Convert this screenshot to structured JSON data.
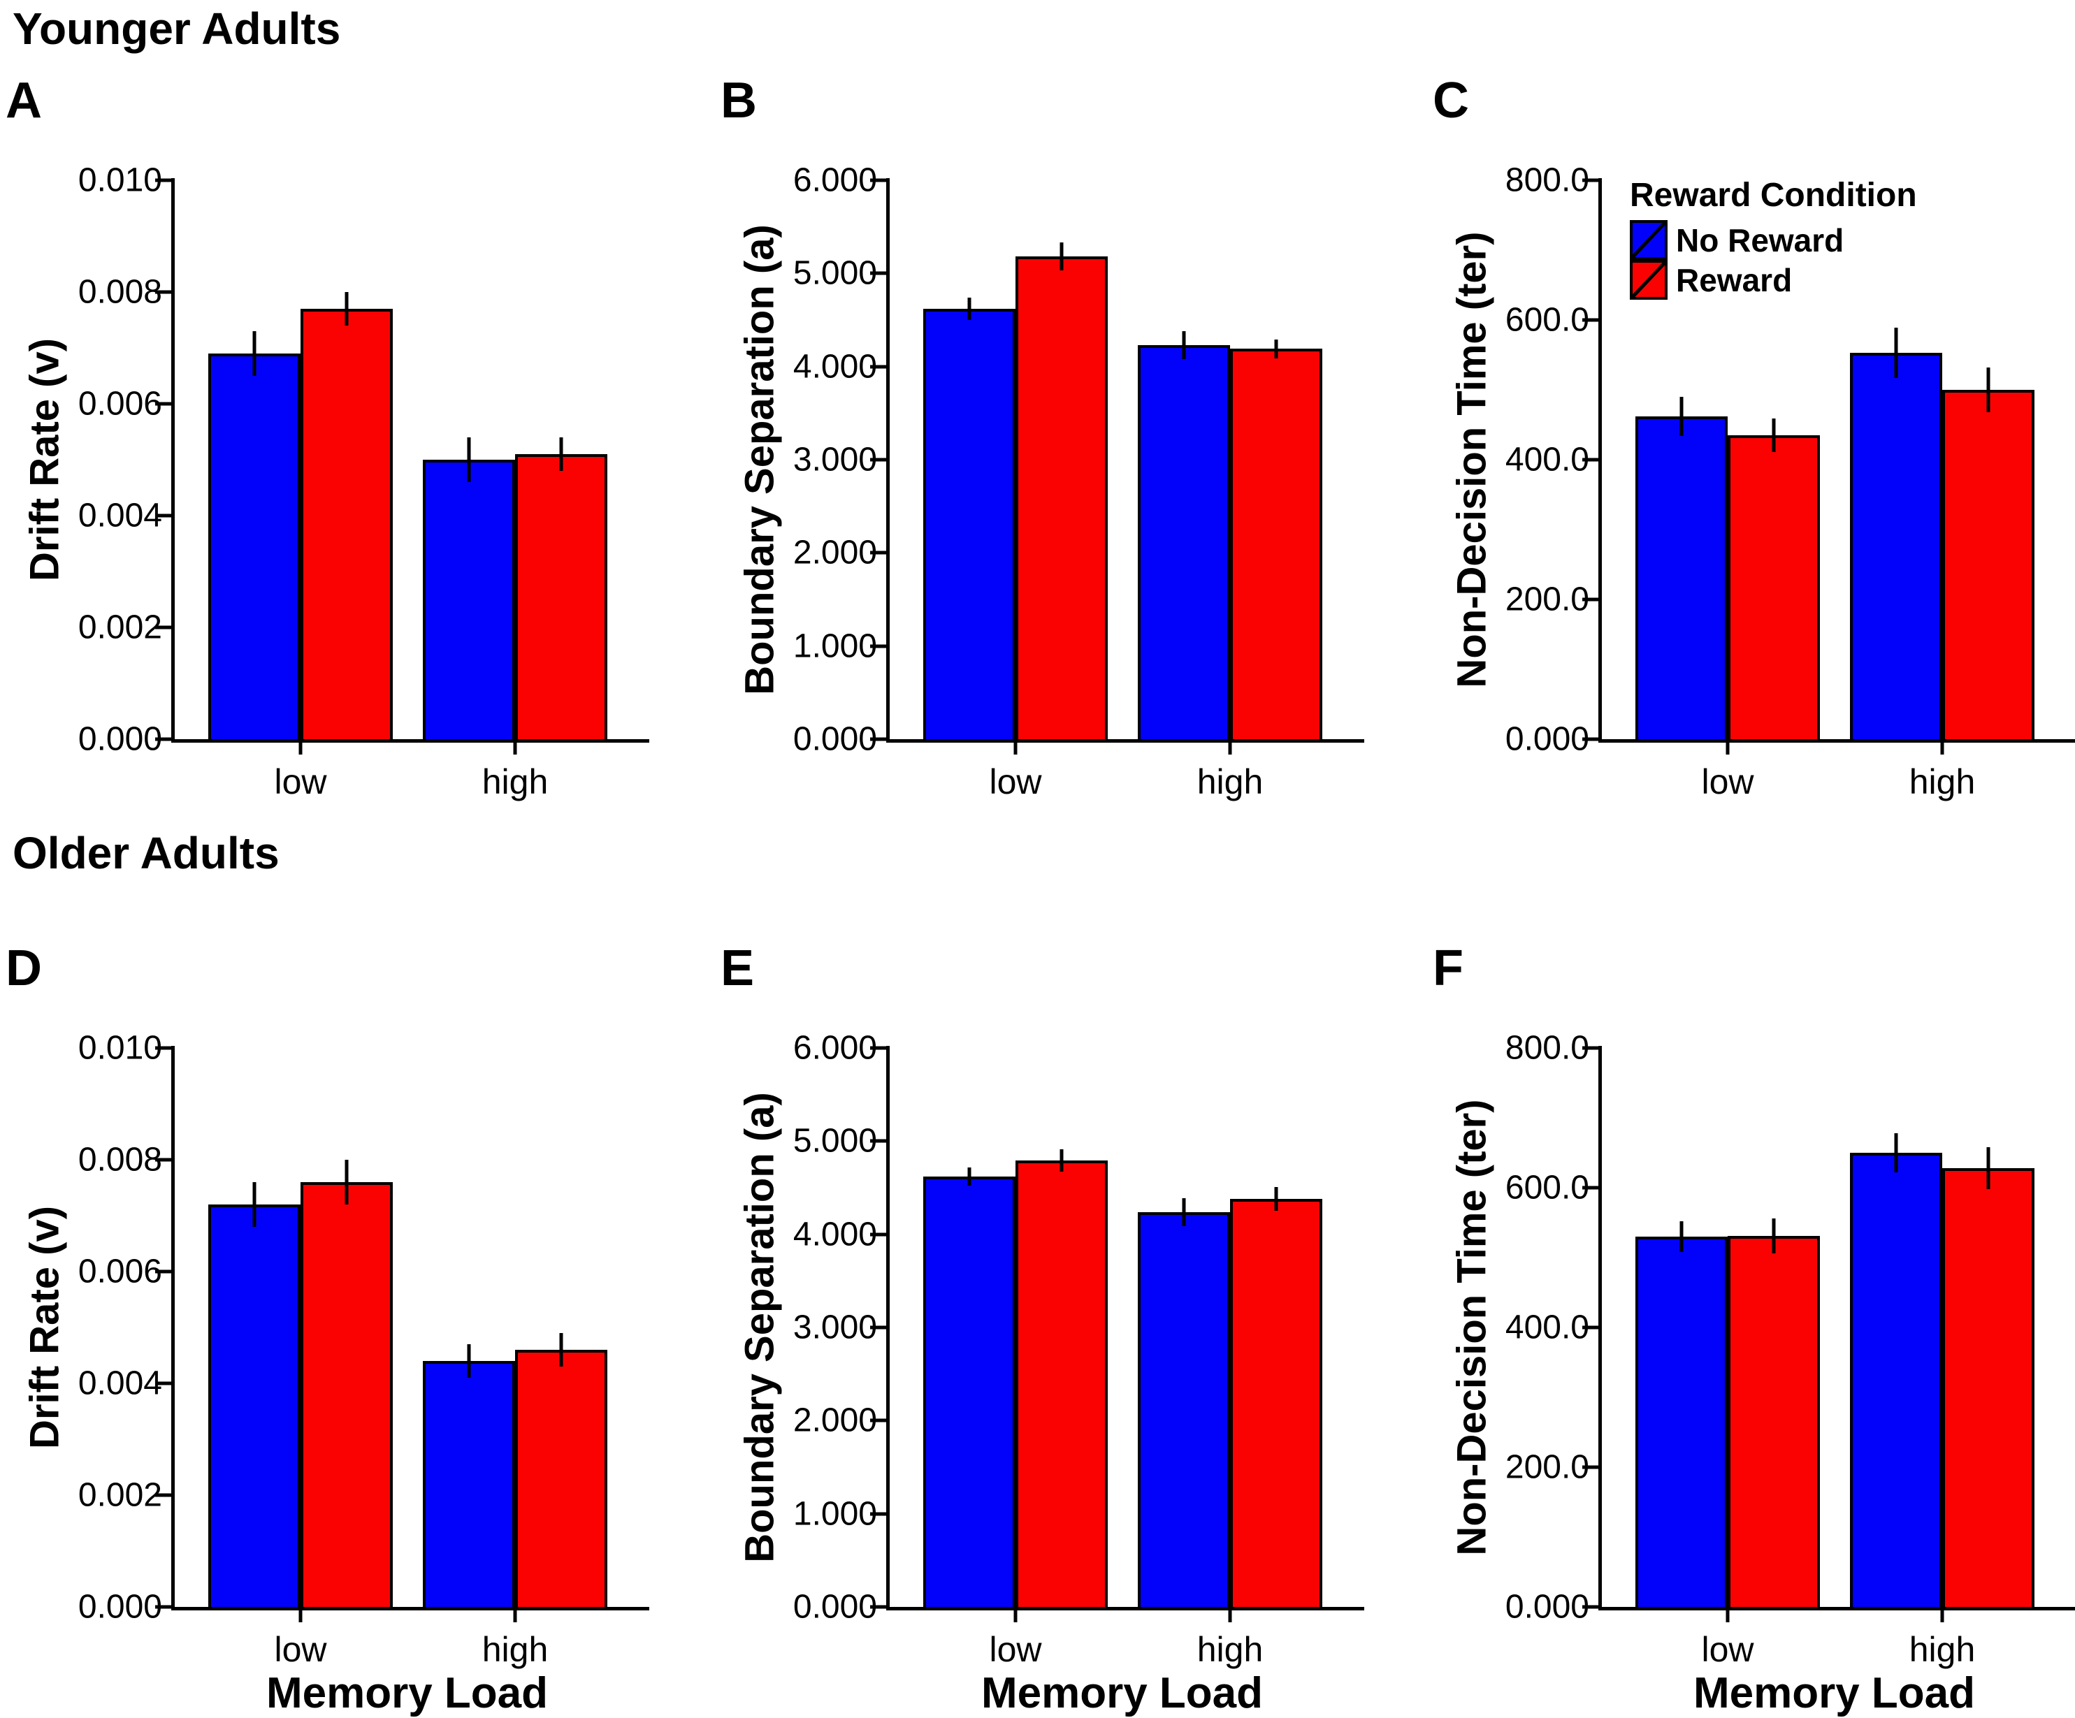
{
  "figure": {
    "background": "#ffffff",
    "row_titles": [
      "Younger Adults",
      "Older Adults"
    ]
  },
  "rows": [
    {
      "title": "Younger Adults"
    },
    {
      "title": "Older Adults"
    }
  ],
  "categories": [
    "low",
    "high"
  ],
  "x_axis_title": "Memory Load",
  "legend": {
    "title": "Reward Condition",
    "items": [
      {
        "label": "No Reward",
        "color_key": "no_reward"
      },
      {
        "label": "Reward",
        "color_key": "reward"
      }
    ]
  },
  "colors": {
    "no_reward": "#0202fa",
    "reward": "#fa0202",
    "axis": "#000000"
  },
  "chart_data": [
    {
      "type": "bar",
      "panel": "A",
      "group": "Younger Adults",
      "ylabel": "Drift Rate (v)",
      "ylim": [
        0,
        0.01
      ],
      "yticks": [
        "0.010",
        "0.008",
        "0.006",
        "0.004",
        "0.002",
        "0.000"
      ],
      "categories": [
        "low",
        "high"
      ],
      "show_legend": false,
      "series": [
        {
          "name": "No Reward",
          "color_key": "no_reward",
          "values": [
            0.0069,
            0.005
          ],
          "errors": [
            0.0004,
            0.0004
          ]
        },
        {
          "name": "Reward",
          "color_key": "reward",
          "values": [
            0.0077,
            0.0051
          ],
          "errors": [
            0.0003,
            0.0003
          ]
        }
      ]
    },
    {
      "type": "bar",
      "panel": "B",
      "group": "Younger Adults",
      "ylabel": "Boundary Separation (a)",
      "ylim": [
        0,
        6
      ],
      "yticks": [
        "6.000",
        "5.000",
        "4.000",
        "3.000",
        "2.000",
        "1.000",
        "0.000"
      ],
      "categories": [
        "low",
        "high"
      ],
      "show_legend": false,
      "series": [
        {
          "name": "No Reward",
          "color_key": "no_reward",
          "values": [
            4.62,
            4.23
          ],
          "errors": [
            0.12,
            0.15
          ]
        },
        {
          "name": "Reward",
          "color_key": "reward",
          "values": [
            5.18,
            4.19
          ],
          "errors": [
            0.15,
            0.1
          ]
        }
      ]
    },
    {
      "type": "bar",
      "panel": "C",
      "group": "Younger Adults",
      "ylabel": "Non-Decision Time (ter)",
      "ylim": [
        0,
        800
      ],
      "yticks": [
        "800.0",
        "600.0",
        "400.0",
        "200.0",
        "0.000"
      ],
      "categories": [
        "low",
        "high"
      ],
      "show_legend": true,
      "series": [
        {
          "name": "No Reward",
          "color_key": "no_reward",
          "values": [
            462,
            553
          ],
          "errors": [
            28,
            36
          ]
        },
        {
          "name": "Reward",
          "color_key": "reward",
          "values": [
            435,
            500
          ],
          "errors": [
            24,
            32
          ]
        }
      ]
    },
    {
      "type": "bar",
      "panel": "D",
      "group": "Older Adults",
      "ylabel": "Drift Rate (v)",
      "xlabel": "Memory Load",
      "ylim": [
        0,
        0.01
      ],
      "yticks": [
        "0.010",
        "0.008",
        "0.006",
        "0.004",
        "0.002",
        "0.000"
      ],
      "categories": [
        "low",
        "high"
      ],
      "show_legend": false,
      "series": [
        {
          "name": "No Reward",
          "color_key": "no_reward",
          "values": [
            0.0072,
            0.0044
          ],
          "errors": [
            0.0004,
            0.0003
          ]
        },
        {
          "name": "Reward",
          "color_key": "reward",
          "values": [
            0.0076,
            0.0046
          ],
          "errors": [
            0.0004,
            0.0003
          ]
        }
      ]
    },
    {
      "type": "bar",
      "panel": "E",
      "group": "Older Adults",
      "ylabel": "Boundary Separation (a)",
      "xlabel": "Memory Load",
      "ylim": [
        0,
        6
      ],
      "yticks": [
        "6.000",
        "5.000",
        "4.000",
        "3.000",
        "2.000",
        "1.000",
        "0.000"
      ],
      "categories": [
        "low",
        "high"
      ],
      "show_legend": false,
      "series": [
        {
          "name": "No Reward",
          "color_key": "no_reward",
          "values": [
            4.62,
            4.24
          ],
          "errors": [
            0.1,
            0.15
          ]
        },
        {
          "name": "Reward",
          "color_key": "reward",
          "values": [
            4.79,
            4.38
          ],
          "errors": [
            0.12,
            0.13
          ]
        }
      ]
    },
    {
      "type": "bar",
      "panel": "F",
      "group": "Older Adults",
      "ylabel": "Non-Decision Time (ter)",
      "xlabel": "Memory Load",
      "ylim": [
        0,
        800
      ],
      "yticks": [
        "800.0",
        "600.0",
        "400.0",
        "200.0",
        "0.000"
      ],
      "categories": [
        "low",
        "high"
      ],
      "show_legend": false,
      "series": [
        {
          "name": "No Reward",
          "color_key": "no_reward",
          "values": [
            530,
            650
          ],
          "errors": [
            22,
            28
          ]
        },
        {
          "name": "Reward",
          "color_key": "reward",
          "values": [
            531,
            628
          ],
          "errors": [
            25,
            30
          ]
        }
      ]
    }
  ]
}
